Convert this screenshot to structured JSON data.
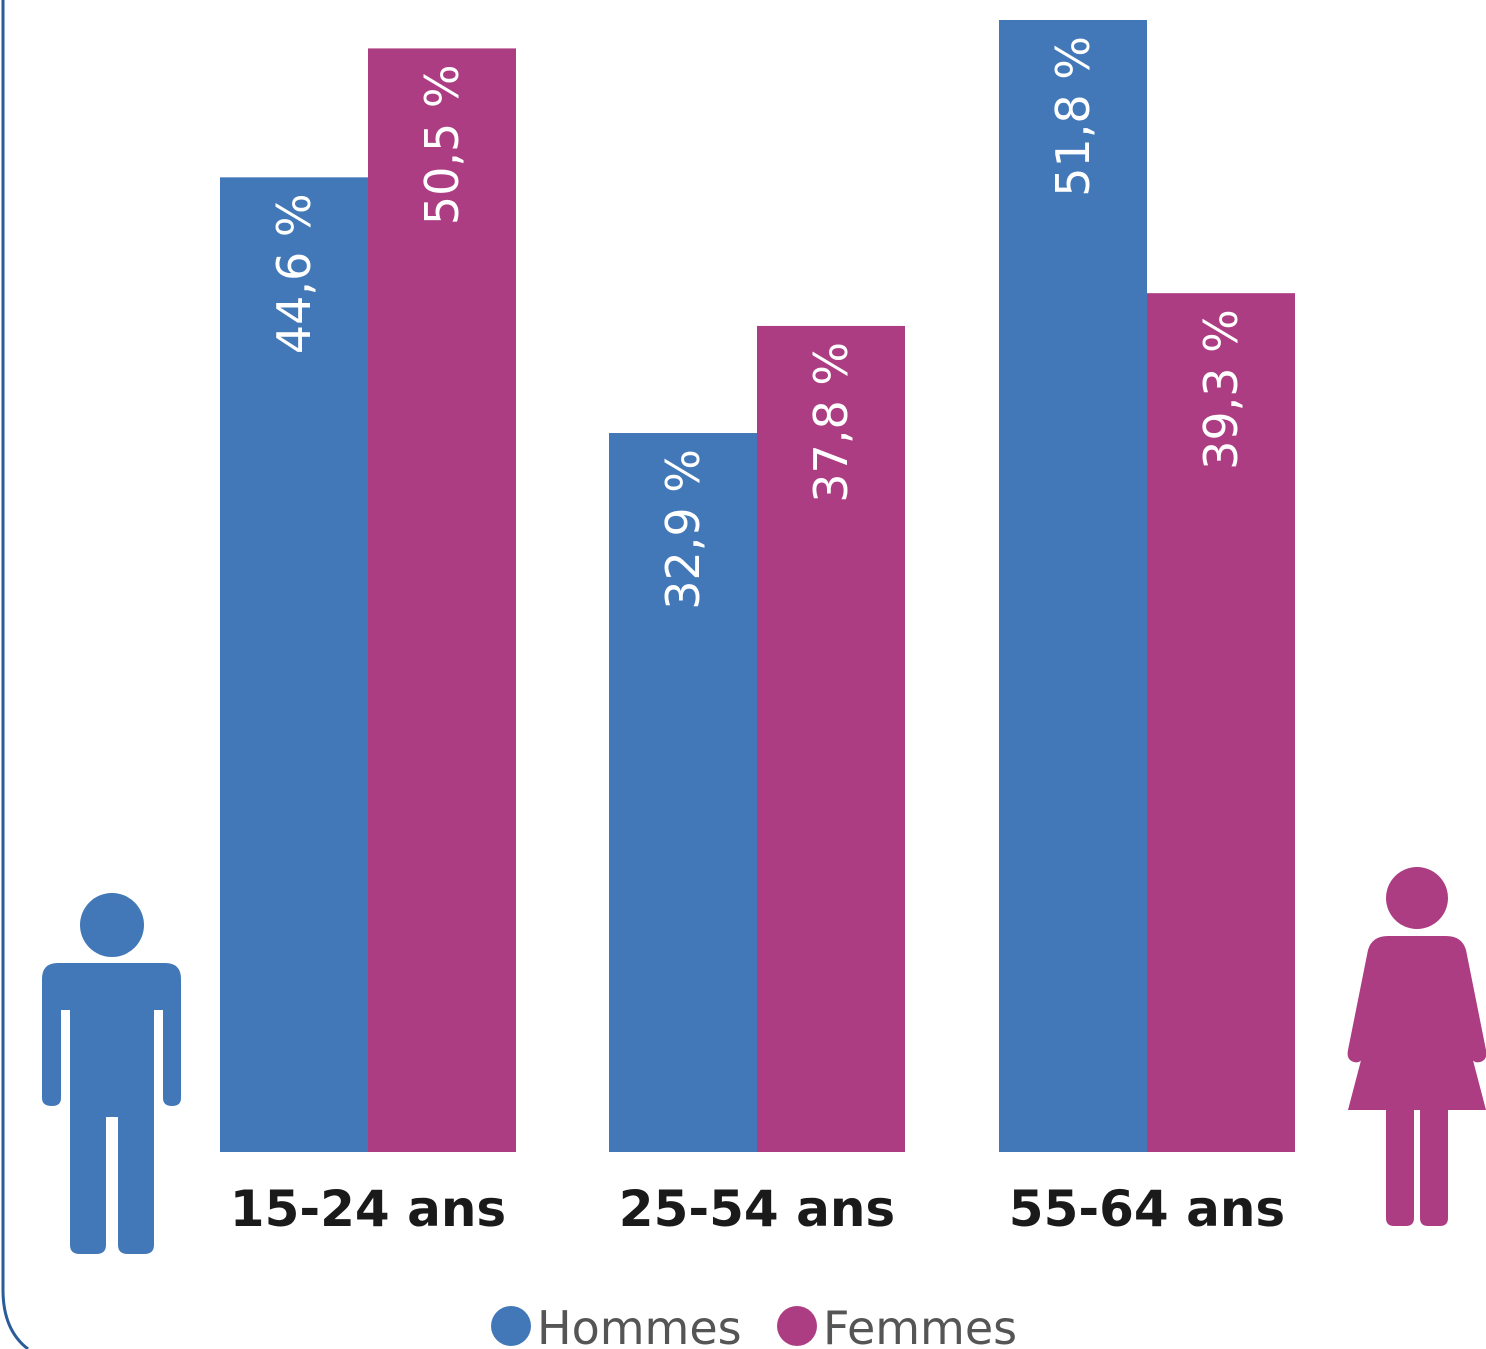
{
  "chart_data": {
    "type": "bar",
    "categories": [
      "15-24 ans",
      "25-54 ans",
      "55-64 ans"
    ],
    "series": [
      {
        "name": "Hommes",
        "values": [
          44.6,
          32.9,
          51.8
        ],
        "labels": [
          "44,6 %",
          "32,9 %",
          "51,8 %"
        ],
        "color": "#4278b7"
      },
      {
        "name": "Femmes",
        "values": [
          50.5,
          37.8,
          39.3
        ],
        "labels": [
          "50,5 %",
          "37,8 %",
          "39,3 %"
        ],
        "color": "#ad3d82"
      }
    ],
    "ylim": [
      0,
      51.8
    ],
    "grid": false,
    "legend": "bottom-center",
    "label_orientation": "vertical"
  },
  "decor": {
    "frame_color": "#2a5c9a",
    "man_icon": "man-icon",
    "woman_icon": "woman-icon"
  }
}
